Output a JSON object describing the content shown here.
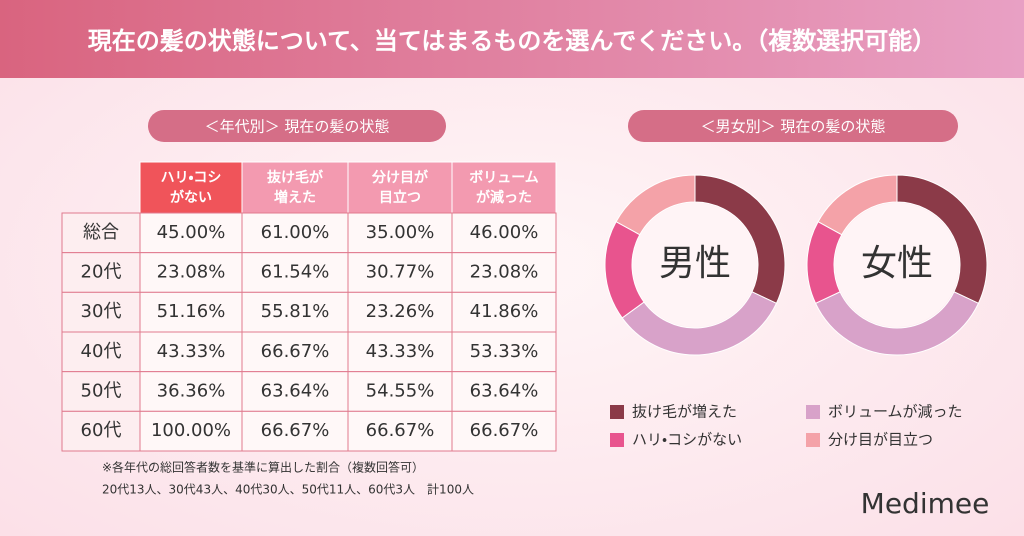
{
  "title": "現在の髪の状態について、当てはまるものを選んでください。（複数選択可能）",
  "table": {
    "heading": "＜年代別＞ 現在の髪の状態",
    "columns": [
      [
        "ハリ・コシ",
        "がない"
      ],
      [
        "抜け毛が",
        "増えた"
      ],
      [
        "分け目が",
        "目立つ"
      ],
      [
        "ボリューム",
        "が減った"
      ]
    ],
    "rows": [
      {
        "label": "総合",
        "values": [
          "45.00%",
          "61.00%",
          "35.00%",
          "46.00%"
        ]
      },
      {
        "label": "20代",
        "values": [
          "23.08%",
          "61.54%",
          "30.77%",
          "23.08%"
        ]
      },
      {
        "label": "30代",
        "values": [
          "51.16%",
          "55.81%",
          "23.26%",
          "41.86%"
        ]
      },
      {
        "label": "40代",
        "values": [
          "43.33%",
          "66.67%",
          "43.33%",
          "53.33%"
        ]
      },
      {
        "label": "50代",
        "values": [
          "36.36%",
          "63.64%",
          "54.55%",
          "63.64%"
        ]
      },
      {
        "label": "60代",
        "values": [
          "100.00%",
          "66.67%",
          "66.67%",
          "66.67%"
        ]
      }
    ],
    "notes": [
      "※各年代の総回答者数を基準に算出した割合（複数回答可）",
      "20代13人、30代43人、40代30人、50代11人、60代3人　計100人"
    ]
  },
  "chart_heading": "＜男女別＞ 現在の髪の状態",
  "chart_data": [
    {
      "type": "pie",
      "center_label": "男性",
      "categories": [
        "抜け毛が増えた",
        "ボリュームが減った",
        "ハリ・コシがない",
        "分け目が目立つ"
      ],
      "values": [
        32,
        33,
        18,
        17
      ],
      "colors": [
        "#8b3a48",
        "#d8a2c9",
        "#e8548e",
        "#f4a2a8"
      ]
    },
    {
      "type": "pie",
      "center_label": "女性",
      "categories": [
        "抜け毛が増えた",
        "ボリュームが減った",
        "ハリ・コシがない",
        "分け目が目立つ"
      ],
      "values": [
        32,
        36,
        15,
        17
      ],
      "colors": [
        "#8b3a48",
        "#d8a2c9",
        "#e8548e",
        "#f4a2a8"
      ]
    }
  ],
  "logo": "Medimee"
}
